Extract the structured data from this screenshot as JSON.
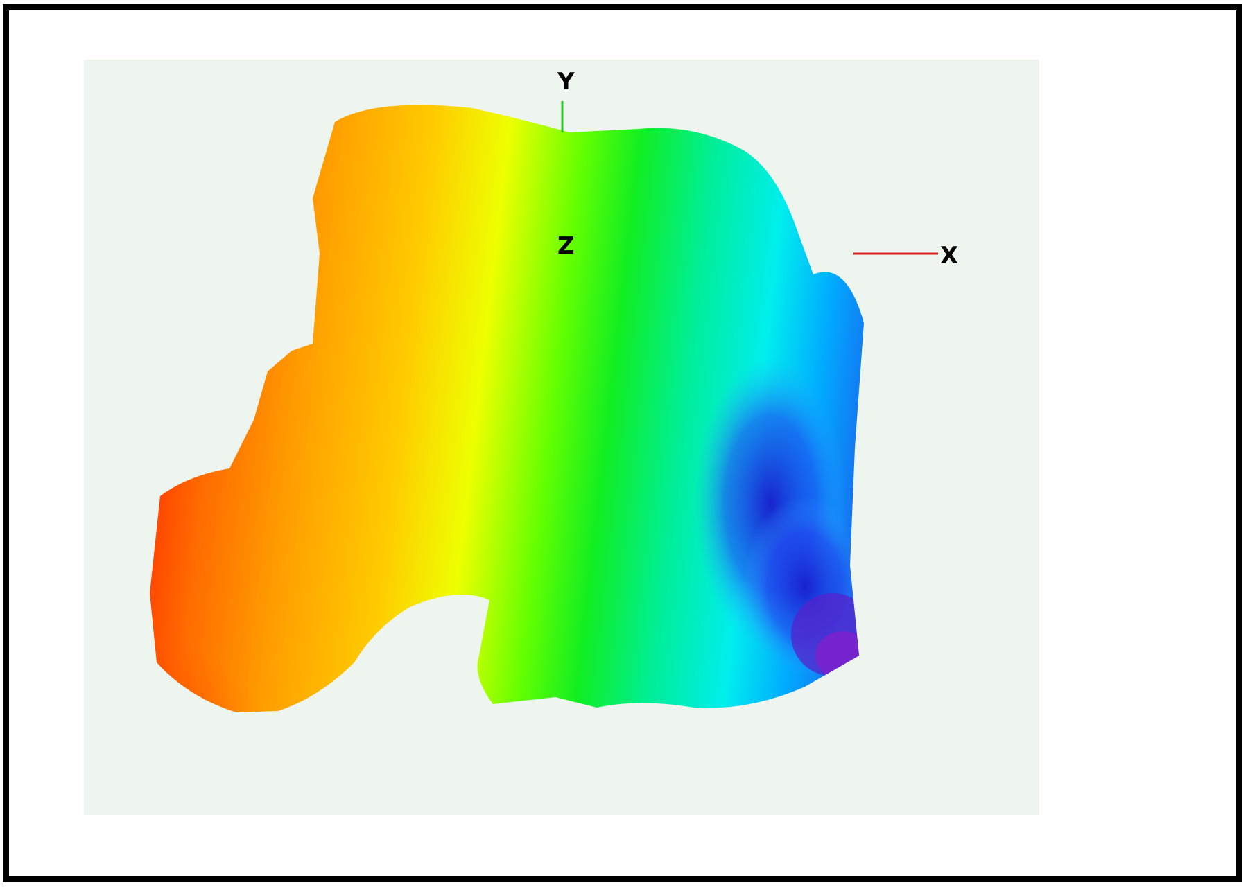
{
  "axes": {
    "x_label": "X",
    "y_label": "Y",
    "z_label": "Z"
  },
  "colors": {
    "background": "#eef4ee",
    "x_axis": "#dd2222",
    "y_axis": "#22cc22",
    "frame_border": "#000000",
    "colormap": [
      "#ff2200",
      "#ff8800",
      "#ffcc00",
      "#eeff00",
      "#22ee22",
      "#00ee88",
      "#00eeee",
      "#0088ff",
      "#2222dd",
      "#7722cc"
    ]
  }
}
